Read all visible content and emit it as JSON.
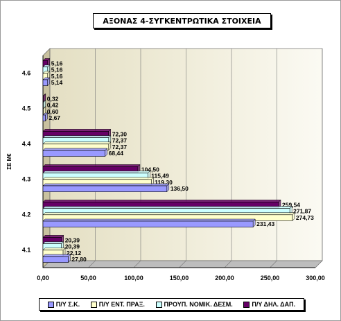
{
  "chart_data": {
    "type": "bar",
    "orientation": "horizontal",
    "title": "ΑΞΟΝΑΣ 4-ΣΥΓΚΕΝΤΡΩΤΙΚΑ ΣΤΟΙΧΕΙΑ",
    "ylabel": "ΣΕ Μ€",
    "xlabel": "",
    "categories": [
      "4.1",
      "4.2",
      "4.3",
      "4.4",
      "4.5",
      "4.6"
    ],
    "xlim": [
      0,
      300
    ],
    "xticks": [
      "0,00",
      "50,00",
      "100,00",
      "150,00",
      "200,00",
      "250,00",
      "300,00"
    ],
    "grid": true,
    "legend_position": "bottom",
    "series": [
      {
        "name": "Π/Υ Σ.Κ.",
        "color": "#9999ff",
        "values": [
          27.8,
          231.43,
          136.5,
          68.44,
          2.67,
          5.14
        ],
        "labels": [
          "27,80",
          "231,43",
          "136,50",
          "68,44",
          "2,67",
          "5,14"
        ]
      },
      {
        "name": "Π/Υ ΕΝΤ. ΠΡΑΞ.",
        "color": "#ffffcc",
        "values": [
          22.12,
          274.73,
          119.3,
          72.37,
          0.6,
          5.16
        ],
        "labels": [
          "22,12",
          "274,73",
          "119,30",
          "72,37",
          "0,60",
          "5,16"
        ]
      },
      {
        "name": "ΠΡΟΥΠ. ΝΟΜΙΚ. ΔΕΣΜ.",
        "color": "#ccffff",
        "values": [
          20.39,
          271.87,
          115.49,
          72.37,
          0.42,
          5.16
        ],
        "labels": [
          "20,39",
          "271,87",
          "115,49",
          "72,37",
          "0,42",
          "5,16"
        ]
      },
      {
        "name": "Π/Υ ΔΗΛ. ΔΑΠ.",
        "color": "#660066",
        "values": [
          20.39,
          259.54,
          104.5,
          72.3,
          0.32,
          5.16
        ],
        "labels": [
          "20,39",
          "259,54",
          "104,50",
          "72,30",
          "0,32",
          "5,16"
        ]
      }
    ]
  }
}
